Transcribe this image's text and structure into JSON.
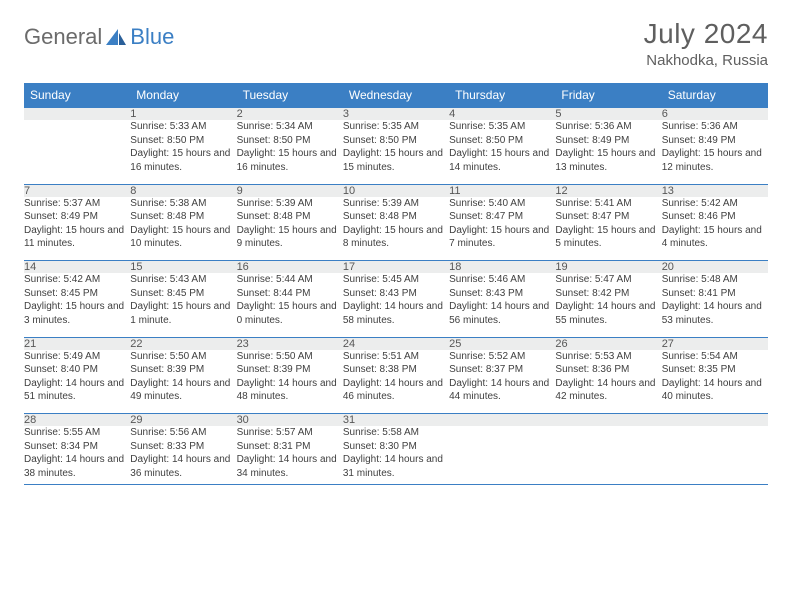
{
  "logo": {
    "text_general": "General",
    "text_blue": "Blue"
  },
  "title": "July 2024",
  "location": "Nakhodka, Russia",
  "colors": {
    "header_bg": "#3b7fc4",
    "header_text": "#ffffff",
    "daynum_bg": "#eceded",
    "border": "#3b7fc4",
    "logo_gray": "#6b6b6b",
    "logo_blue": "#3b7fc4",
    "text": "#3f3f3f"
  },
  "day_headers": [
    "Sunday",
    "Monday",
    "Tuesday",
    "Wednesday",
    "Thursday",
    "Friday",
    "Saturday"
  ],
  "weeks": [
    {
      "nums": [
        "",
        "1",
        "2",
        "3",
        "4",
        "5",
        "6"
      ],
      "cells": [
        {
          "sunrise": "",
          "sunset": "",
          "daylight": ""
        },
        {
          "sunrise": "Sunrise: 5:33 AM",
          "sunset": "Sunset: 8:50 PM",
          "daylight": "Daylight: 15 hours and 16 minutes."
        },
        {
          "sunrise": "Sunrise: 5:34 AM",
          "sunset": "Sunset: 8:50 PM",
          "daylight": "Daylight: 15 hours and 16 minutes."
        },
        {
          "sunrise": "Sunrise: 5:35 AM",
          "sunset": "Sunset: 8:50 PM",
          "daylight": "Daylight: 15 hours and 15 minutes."
        },
        {
          "sunrise": "Sunrise: 5:35 AM",
          "sunset": "Sunset: 8:50 PM",
          "daylight": "Daylight: 15 hours and 14 minutes."
        },
        {
          "sunrise": "Sunrise: 5:36 AM",
          "sunset": "Sunset: 8:49 PM",
          "daylight": "Daylight: 15 hours and 13 minutes."
        },
        {
          "sunrise": "Sunrise: 5:36 AM",
          "sunset": "Sunset: 8:49 PM",
          "daylight": "Daylight: 15 hours and 12 minutes."
        }
      ]
    },
    {
      "nums": [
        "7",
        "8",
        "9",
        "10",
        "11",
        "12",
        "13"
      ],
      "cells": [
        {
          "sunrise": "Sunrise: 5:37 AM",
          "sunset": "Sunset: 8:49 PM",
          "daylight": "Daylight: 15 hours and 11 minutes."
        },
        {
          "sunrise": "Sunrise: 5:38 AM",
          "sunset": "Sunset: 8:48 PM",
          "daylight": "Daylight: 15 hours and 10 minutes."
        },
        {
          "sunrise": "Sunrise: 5:39 AM",
          "sunset": "Sunset: 8:48 PM",
          "daylight": "Daylight: 15 hours and 9 minutes."
        },
        {
          "sunrise": "Sunrise: 5:39 AM",
          "sunset": "Sunset: 8:48 PM",
          "daylight": "Daylight: 15 hours and 8 minutes."
        },
        {
          "sunrise": "Sunrise: 5:40 AM",
          "sunset": "Sunset: 8:47 PM",
          "daylight": "Daylight: 15 hours and 7 minutes."
        },
        {
          "sunrise": "Sunrise: 5:41 AM",
          "sunset": "Sunset: 8:47 PM",
          "daylight": "Daylight: 15 hours and 5 minutes."
        },
        {
          "sunrise": "Sunrise: 5:42 AM",
          "sunset": "Sunset: 8:46 PM",
          "daylight": "Daylight: 15 hours and 4 minutes."
        }
      ]
    },
    {
      "nums": [
        "14",
        "15",
        "16",
        "17",
        "18",
        "19",
        "20"
      ],
      "cells": [
        {
          "sunrise": "Sunrise: 5:42 AM",
          "sunset": "Sunset: 8:45 PM",
          "daylight": "Daylight: 15 hours and 3 minutes."
        },
        {
          "sunrise": "Sunrise: 5:43 AM",
          "sunset": "Sunset: 8:45 PM",
          "daylight": "Daylight: 15 hours and 1 minute."
        },
        {
          "sunrise": "Sunrise: 5:44 AM",
          "sunset": "Sunset: 8:44 PM",
          "daylight": "Daylight: 15 hours and 0 minutes."
        },
        {
          "sunrise": "Sunrise: 5:45 AM",
          "sunset": "Sunset: 8:43 PM",
          "daylight": "Daylight: 14 hours and 58 minutes."
        },
        {
          "sunrise": "Sunrise: 5:46 AM",
          "sunset": "Sunset: 8:43 PM",
          "daylight": "Daylight: 14 hours and 56 minutes."
        },
        {
          "sunrise": "Sunrise: 5:47 AM",
          "sunset": "Sunset: 8:42 PM",
          "daylight": "Daylight: 14 hours and 55 minutes."
        },
        {
          "sunrise": "Sunrise: 5:48 AM",
          "sunset": "Sunset: 8:41 PM",
          "daylight": "Daylight: 14 hours and 53 minutes."
        }
      ]
    },
    {
      "nums": [
        "21",
        "22",
        "23",
        "24",
        "25",
        "26",
        "27"
      ],
      "cells": [
        {
          "sunrise": "Sunrise: 5:49 AM",
          "sunset": "Sunset: 8:40 PM",
          "daylight": "Daylight: 14 hours and 51 minutes."
        },
        {
          "sunrise": "Sunrise: 5:50 AM",
          "sunset": "Sunset: 8:39 PM",
          "daylight": "Daylight: 14 hours and 49 minutes."
        },
        {
          "sunrise": "Sunrise: 5:50 AM",
          "sunset": "Sunset: 8:39 PM",
          "daylight": "Daylight: 14 hours and 48 minutes."
        },
        {
          "sunrise": "Sunrise: 5:51 AM",
          "sunset": "Sunset: 8:38 PM",
          "daylight": "Daylight: 14 hours and 46 minutes."
        },
        {
          "sunrise": "Sunrise: 5:52 AM",
          "sunset": "Sunset: 8:37 PM",
          "daylight": "Daylight: 14 hours and 44 minutes."
        },
        {
          "sunrise": "Sunrise: 5:53 AM",
          "sunset": "Sunset: 8:36 PM",
          "daylight": "Daylight: 14 hours and 42 minutes."
        },
        {
          "sunrise": "Sunrise: 5:54 AM",
          "sunset": "Sunset: 8:35 PM",
          "daylight": "Daylight: 14 hours and 40 minutes."
        }
      ]
    },
    {
      "nums": [
        "28",
        "29",
        "30",
        "31",
        "",
        "",
        ""
      ],
      "cells": [
        {
          "sunrise": "Sunrise: 5:55 AM",
          "sunset": "Sunset: 8:34 PM",
          "daylight": "Daylight: 14 hours and 38 minutes."
        },
        {
          "sunrise": "Sunrise: 5:56 AM",
          "sunset": "Sunset: 8:33 PM",
          "daylight": "Daylight: 14 hours and 36 minutes."
        },
        {
          "sunrise": "Sunrise: 5:57 AM",
          "sunset": "Sunset: 8:31 PM",
          "daylight": "Daylight: 14 hours and 34 minutes."
        },
        {
          "sunrise": "Sunrise: 5:58 AM",
          "sunset": "Sunset: 8:30 PM",
          "daylight": "Daylight: 14 hours and 31 minutes."
        },
        {
          "sunrise": "",
          "sunset": "",
          "daylight": ""
        },
        {
          "sunrise": "",
          "sunset": "",
          "daylight": ""
        },
        {
          "sunrise": "",
          "sunset": "",
          "daylight": ""
        }
      ]
    }
  ]
}
